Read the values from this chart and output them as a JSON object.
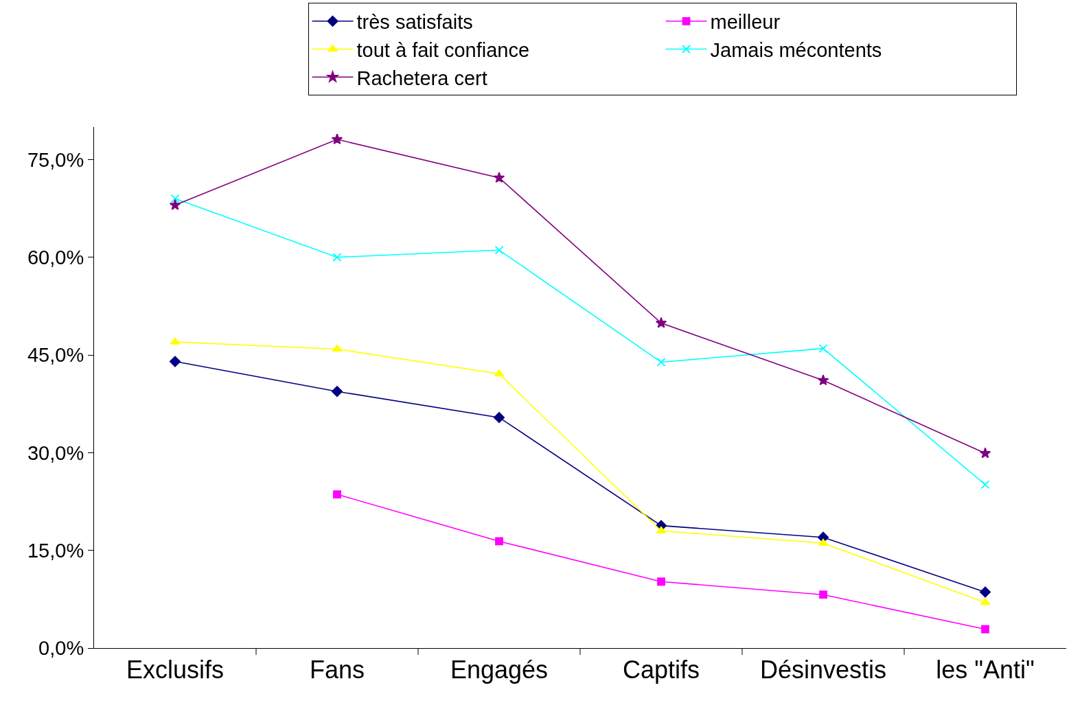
{
  "chart_data": {
    "type": "line",
    "categories": [
      "Exclusifs",
      "Fans",
      "Engagés",
      "Captifs",
      "Désinvestis",
      "les \"Anti\""
    ],
    "series": [
      {
        "name": "très satisfaits",
        "color": "#000080",
        "marker": "diamond",
        "values": [
          44.0,
          39.4,
          35.4,
          18.8,
          17.0,
          8.6
        ]
      },
      {
        "name": "meilleur",
        "color": "#ff00ff",
        "marker": "square",
        "values": [
          null,
          23.6,
          16.4,
          10.2,
          8.2,
          2.9
        ]
      },
      {
        "name": "tout à fait confiance",
        "color": "#ffff00",
        "marker": "triangle",
        "values": [
          47.0,
          45.9,
          42.1,
          18.0,
          16.1,
          7.0
        ]
      },
      {
        "name": "Jamais mécontents",
        "color": "#00ffff",
        "marker": "cross",
        "values": [
          69.0,
          60.0,
          61.1,
          43.9,
          46.0,
          25.1
        ]
      },
      {
        "name": "Rachetera cert",
        "color": "#800080",
        "marker": "star",
        "values": [
          68.0,
          78.1,
          72.2,
          49.9,
          41.1,
          29.9
        ]
      }
    ],
    "ylim": [
      0,
      80
    ],
    "yticks": [
      {
        "value": 0,
        "label": "0,0%"
      },
      {
        "value": 15,
        "label": "15,0%"
      },
      {
        "value": 30,
        "label": "30,0%"
      },
      {
        "value": 45,
        "label": "45,0%"
      },
      {
        "value": 60,
        "label": "60,0%"
      },
      {
        "value": 75,
        "label": "75,0%"
      }
    ],
    "grid": false,
    "legend": "top",
    "line_style": "solid"
  }
}
